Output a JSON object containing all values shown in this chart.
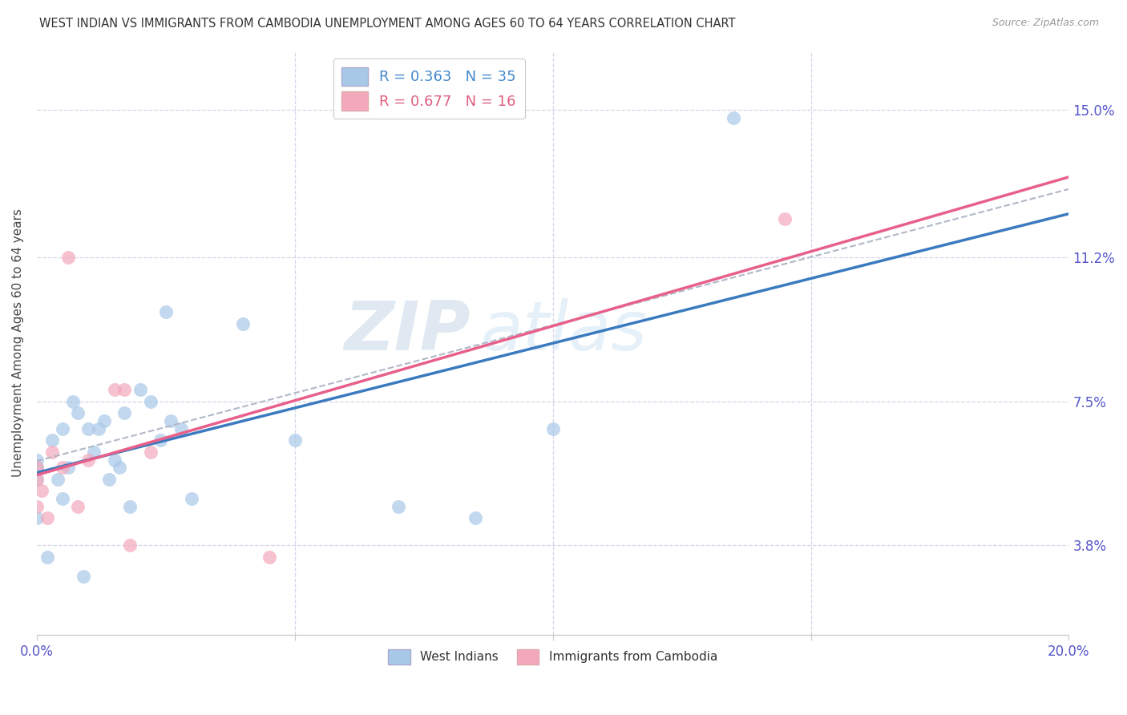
{
  "title": "WEST INDIAN VS IMMIGRANTS FROM CAMBODIA UNEMPLOYMENT AMONG AGES 60 TO 64 YEARS CORRELATION CHART",
  "source": "Source: ZipAtlas.com",
  "ylabel": "Unemployment Among Ages 60 to 64 years",
  "ytick_labels": [
    "3.8%",
    "7.5%",
    "11.2%",
    "15.0%"
  ],
  "ytick_values": [
    3.8,
    7.5,
    11.2,
    15.0
  ],
  "xmin": 0.0,
  "xmax": 20.0,
  "ymin": 1.5,
  "ymax": 16.5,
  "legend_label1": "West Indians",
  "legend_label2": "Immigrants from Cambodia",
  "R1": 0.363,
  "N1": 35,
  "R2": 0.677,
  "N2": 16,
  "color_blue": "#a8c8e8",
  "color_pink": "#f4a8bc",
  "color_blue_line": "#3a7abf",
  "color_pink_line": "#e8608a",
  "color_dashed": "#b0b8c8",
  "watermark_zip": "ZIP",
  "watermark_atlas": "atlas",
  "wi_x": [
    0.0,
    0.0,
    0.0,
    0.0,
    0.2,
    0.3,
    0.4,
    0.5,
    0.5,
    0.6,
    0.7,
    0.8,
    0.9,
    1.0,
    1.1,
    1.2,
    1.3,
    1.4,
    1.5,
    1.6,
    1.7,
    1.8,
    2.0,
    2.2,
    2.4,
    2.6,
    2.8,
    3.0,
    4.0,
    5.0,
    7.0,
    8.5,
    10.0,
    13.5,
    2.5
  ],
  "wi_y": [
    5.5,
    5.8,
    6.0,
    4.5,
    3.5,
    6.5,
    5.5,
    5.0,
    6.8,
    5.8,
    7.5,
    7.2,
    3.0,
    6.8,
    6.2,
    6.8,
    7.0,
    5.5,
    6.0,
    5.8,
    7.2,
    4.8,
    7.8,
    7.5,
    6.5,
    7.0,
    6.8,
    5.0,
    9.5,
    6.5,
    4.8,
    4.5,
    6.8,
    14.8,
    9.8
  ],
  "cam_x": [
    0.0,
    0.0,
    0.0,
    0.1,
    0.2,
    0.3,
    0.5,
    0.6,
    0.8,
    1.0,
    1.5,
    1.7,
    1.8,
    2.2,
    4.5,
    14.5
  ],
  "cam_y": [
    5.5,
    5.8,
    4.8,
    5.2,
    4.5,
    6.2,
    5.8,
    11.2,
    4.8,
    6.0,
    7.8,
    7.8,
    3.8,
    6.2,
    3.5,
    12.2
  ]
}
